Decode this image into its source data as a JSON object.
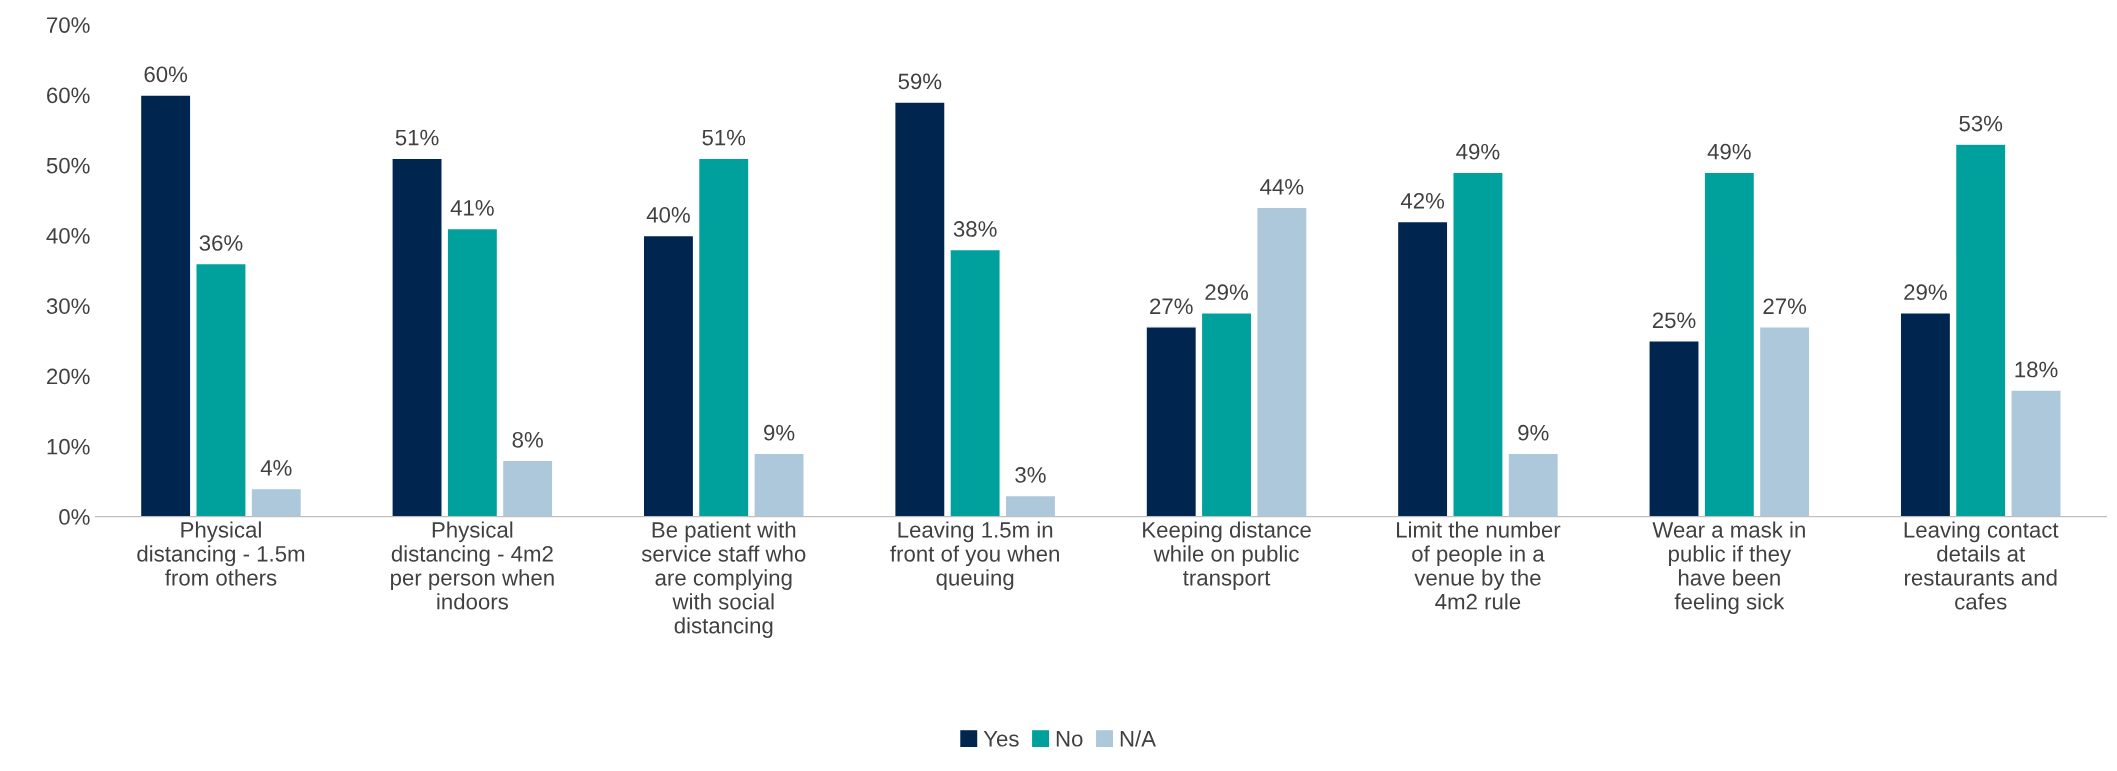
{
  "chart_data": {
    "type": "bar",
    "categories": [
      "Physical\ndistancing - 1.5m\nfrom others",
      "Physical\ndistancing - 4m2\nper person when\nindoors",
      "Be patient with\nservice staff who\nare complying\nwith social\ndistancing",
      "Leaving 1.5m in\nfront of you when\nqueuing",
      "Keeping distance\nwhile on public\ntransport",
      "Limit the number\nof people in a\nvenue by the\n4m2 rule",
      "Wear a mask in\npublic if they\nhave been\nfeeling sick",
      "Leaving contact\ndetails at\nrestaurants and\ncafes"
    ],
    "series": [
      {
        "name": "Yes",
        "color": "#00264f",
        "values": [
          60,
          51,
          40,
          59,
          27,
          42,
          25,
          29
        ],
        "value_labels": [
          "60%",
          "51%",
          "40%",
          "59%",
          "27%",
          "42%",
          "25%",
          "29%"
        ]
      },
      {
        "name": "No",
        "color": "#00a19c",
        "values": [
          36,
          41,
          51,
          38,
          29,
          49,
          49,
          53
        ],
        "value_labels": [
          "36%",
          "41%",
          "51%",
          "38%",
          "29%",
          "49%",
          "49%",
          "53%"
        ]
      },
      {
        "name": "N/A",
        "color": "#adc8da",
        "values": [
          4,
          8,
          9,
          3,
          44,
          9,
          27,
          18
        ],
        "value_labels": [
          "4%",
          "8%",
          "9%",
          "3%",
          "44%",
          "9%",
          "27%",
          "18%"
        ]
      }
    ],
    "ylim": [
      0,
      70
    ],
    "yticks": [
      {
        "value": 0,
        "label": "0%"
      },
      {
        "value": 10,
        "label": "10%"
      },
      {
        "value": 20,
        "label": "20%"
      },
      {
        "value": 30,
        "label": "30%"
      },
      {
        "value": 40,
        "label": "40%"
      },
      {
        "value": 50,
        "label": "50%"
      },
      {
        "value": 60,
        "label": "60%"
      },
      {
        "value": 70,
        "label": "70%"
      }
    ],
    "grid": false,
    "legend": "bottom"
  }
}
